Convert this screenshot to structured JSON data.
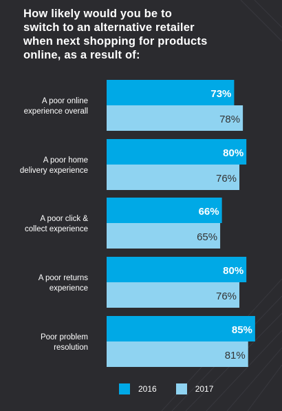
{
  "title_lines": [
    "How likely would you be to",
    "switch to an alternative retailer",
    "when next shopping for products",
    "online, as a result of:"
  ],
  "colors": {
    "background": "#2b2b2f",
    "series_2016": "#00a9e6",
    "series_2017": "#8fd3f1",
    "text_2016": "#ffffff",
    "text_2017": "#333333"
  },
  "legend": [
    {
      "name": "2016",
      "color": "#00a9e6"
    },
    {
      "name": "2017",
      "color": "#8fd3f1"
    }
  ],
  "chart_data": {
    "type": "bar",
    "orientation": "horizontal",
    "categories": [
      [
        "A poor online",
        "experience overall"
      ],
      [
        "A poor home",
        "delivery experience"
      ],
      [
        "A poor click &",
        "collect experience"
      ],
      [
        "A poor returns",
        "experience"
      ],
      [
        "Poor problem",
        "resolution"
      ]
    ],
    "series": [
      {
        "name": "2016",
        "values": [
          73,
          80,
          66,
          80,
          85
        ],
        "labels": [
          "73%",
          "80%",
          "66%",
          "80%",
          "85%"
        ]
      },
      {
        "name": "2017",
        "values": [
          78,
          76,
          65,
          76,
          81
        ],
        "labels": [
          "78%",
          "76%",
          "65%",
          "76%",
          "81%"
        ]
      }
    ],
    "legend_position": "bottom",
    "grid": false
  }
}
